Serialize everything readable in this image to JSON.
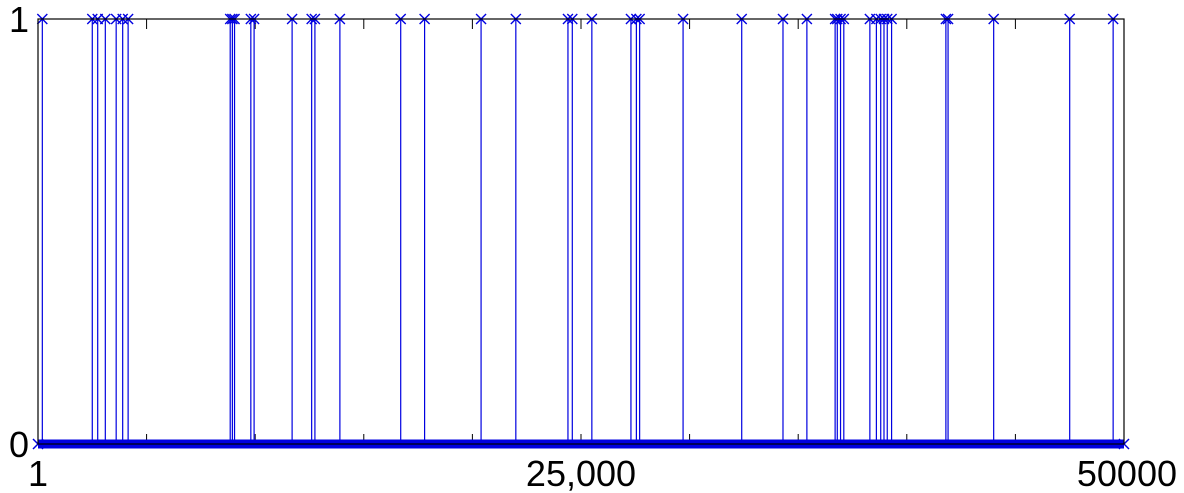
{
  "chart_data": {
    "type": "stem",
    "title": "",
    "xlabel": "",
    "ylabel": "",
    "xlim": [
      1,
      50000
    ],
    "ylim": [
      0,
      1
    ],
    "x_ticks": [
      1,
      25000,
      50000
    ],
    "x_tick_labels": [
      "1",
      "25,000",
      "50000"
    ],
    "x_minor_ticks": [
      5000,
      10000,
      15000,
      20000,
      30000,
      35000,
      40000,
      45000
    ],
    "y_ticks": [
      0,
      1
    ],
    "y_tick_labels": [
      "0",
      "1"
    ],
    "grid": false,
    "marker": "x",
    "series_color": "#0000e0",
    "ones_x": [
      200,
      2500,
      2750,
      3100,
      3600,
      3900,
      4150,
      8850,
      8950,
      9050,
      9800,
      9950,
      11700,
      12600,
      12750,
      13900,
      16700,
      17800,
      20400,
      22000,
      24400,
      24600,
      25500,
      27300,
      27550,
      27700,
      29700,
      32400,
      34300,
      35400,
      36700,
      36800,
      36950,
      37100,
      38300,
      38600,
      38800,
      38950,
      39100,
      39300,
      41800,
      41900,
      44000,
      47500,
      49500
    ]
  }
}
